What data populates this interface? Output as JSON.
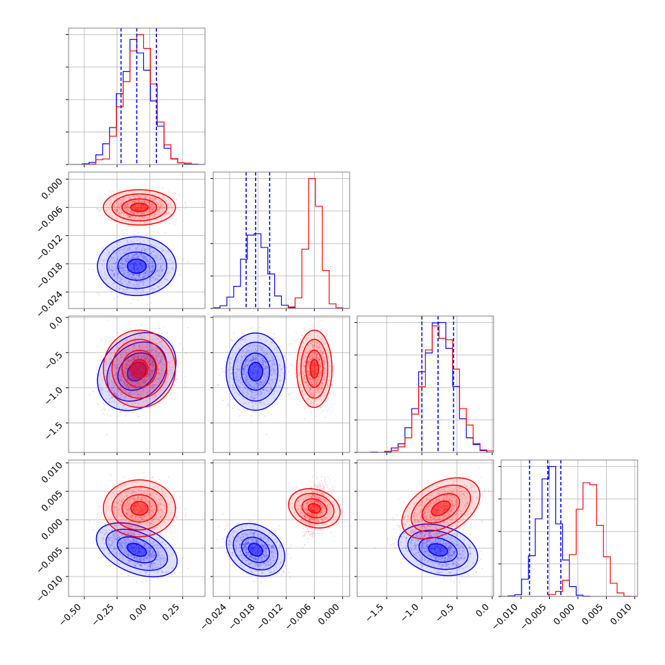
{
  "chart_data": {
    "type": "corner",
    "title": "",
    "grid": true,
    "colors": {
      "blue": "#0000ff",
      "red": "#ff0000"
    },
    "parameters": [
      {
        "index": 0,
        "range": [
          -0.62,
          0.42
        ],
        "ticks": [
          -0.5,
          -0.25,
          0.0,
          0.25
        ],
        "tick_labels": [
          "−0.50",
          "−0.25",
          "0.00",
          "0.25"
        ]
      },
      {
        "index": 1,
        "range": [
          -0.0275,
          0.0015
        ],
        "ticks": [
          -0.024,
          -0.018,
          -0.012,
          -0.006,
          0.0
        ],
        "tick_labels": [
          "−0.024",
          "−0.018",
          "−0.012",
          "−0.006",
          "0.000"
        ]
      },
      {
        "index": 2,
        "range": [
          -1.92,
          0.02
        ],
        "ticks": [
          -1.5,
          -1.0,
          -0.5,
          0.0
        ],
        "tick_labels": [
          "−1.5",
          "−1.0",
          "−0.5",
          "0.0"
        ]
      },
      {
        "index": 3,
        "range": [
          -0.0135,
          0.0105
        ],
        "ticks": [
          -0.01,
          -0.005,
          0.0,
          0.005,
          0.01
        ],
        "tick_labels": [
          "−0.010",
          "−0.005",
          "0.000",
          "0.005",
          "0.010"
        ]
      }
    ],
    "series": [
      {
        "color": "blue",
        "mean": [
          -0.1,
          -0.0185,
          -0.77,
          -0.0053
        ],
        "std": [
          0.12,
          0.0025,
          0.22,
          0.0018
        ],
        "quantiles": [
          [
            -0.22,
            -0.1,
            0.05
          ],
          [
            -0.0205,
            -0.0185,
            -0.0155
          ],
          [
            -1.0,
            -0.77,
            -0.55
          ],
          [
            -0.0085,
            -0.0053,
            -0.003
          ]
        ],
        "corr": {
          "0-1": 0.0,
          "0-2": 0.55,
          "0-3": -0.45,
          "1-2": 0.0,
          "1-3": -0.35,
          "2-3": -0.25
        }
      },
      {
        "color": "red",
        "mean": [
          -0.08,
          -0.006,
          -0.73,
          0.002
        ],
        "std": [
          0.11,
          0.0015,
          0.22,
          0.002
        ],
        "quantiles": null,
        "corr": {
          "0-1": 0.0,
          "0-2": 0.0,
          "0-3": 0.0,
          "1-2": 0.0,
          "1-3": 0.35,
          "2-3": 0.55
        }
      }
    ]
  }
}
